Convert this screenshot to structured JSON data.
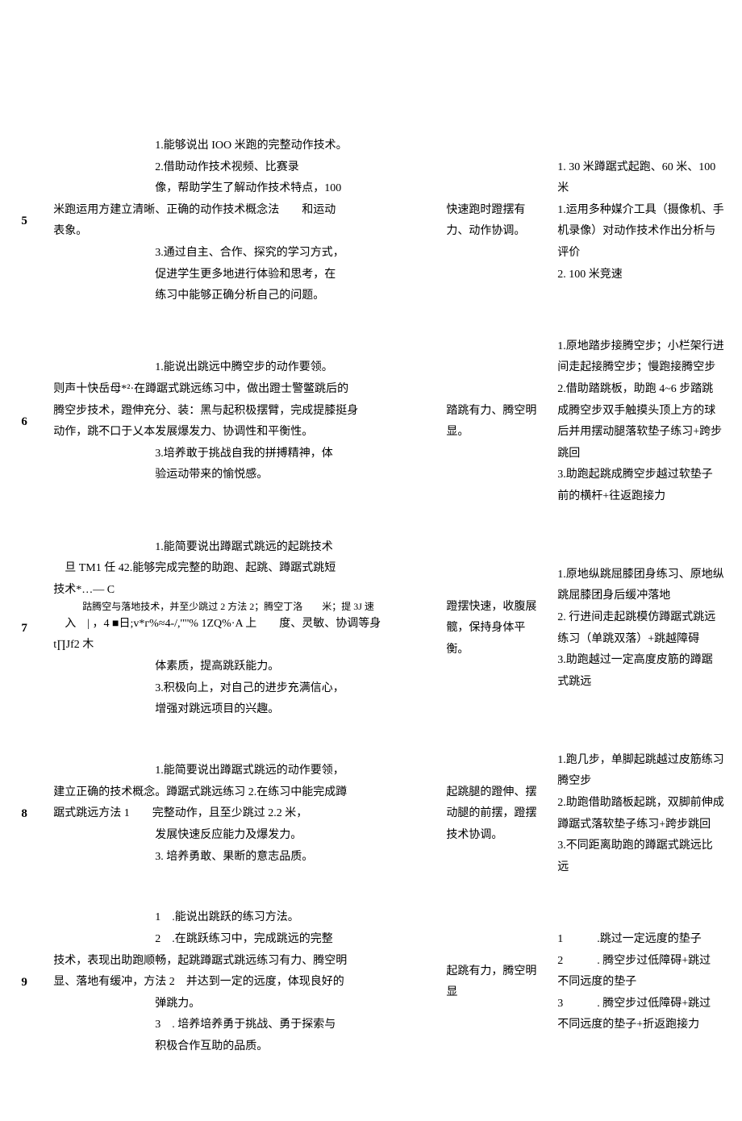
{
  "rows": [
    {
      "num": "5",
      "col2_lines": [
        "　　　　　　　　　1.能够说出 IOO 米跑的完整动作技术。",
        "　　　　　　　　　2.借助动作技术视频、比赛录",
        "　　　　　　　　　像，帮助学生了解动作技术特点，100",
        "米跑运用方建立清晰、正确的动作技术概念法　　和运动",
        "表象。",
        "　　　　　　　　　3.通过自主、合作、探究的学习方式，",
        "　　　　　　　　　促进学生更多地进行体验和思考，在",
        "　　　　　　　　　练习中能够正确分析自己的问题。"
      ],
      "col3_lines": [
        "快速跑时蹬摆有",
        "力、动作协调。"
      ],
      "col4_lines": [
        "1. 30 米蹲踞式起跑、60 米、100",
        "米",
        "1.运用多种媒介工具（摄像机、手",
        "机录像）对动作技术作出分析与",
        "评价",
        "2. 100 米竞速"
      ]
    },
    {
      "num": "6",
      "col2_lines": [
        "　　　　　　　　　1.能说出跳远中腾空步的动作要领。",
        "则声十快岳母*²·在蹲踞式跳远练习中，做出蹬士警鳖跳后的",
        "腾空步技术，蹬伸充分、装：黑与起积极摆臂，完成提膝挺身",
        "动作，跳不口于乂本发展爆发力、协调性和平衡性。",
        "　　　　　　　　　3.培养敢于挑战自我的拼搏精神，体",
        "　　　　　　　　　验运动带来的愉悦感。"
      ],
      "col3_lines": [
        "踏跳有力、腾空明",
        "显。"
      ],
      "col4_lines": [
        "1.原地踏步接腾空步；小栏架行进",
        "间走起接腾空步；慢跑接腾空步",
        "2.借助踏跳板，助跑 4~6 步踏跳",
        "成腾空步双手触摸头顶上方的球",
        "后并用摆动腿落软垫子练习+跨步",
        "跳回",
        "3.助跑起跳成腾空步越过软垫子",
        "前的横杆+往返跑接力"
      ]
    },
    {
      "num": "7",
      "col2_lines": [
        "　　　　　　　　　1.能简要说出蹲踞式跳远的起跳技术",
        "　旦 TM1 任 42.能够完成完整的助跑、起跳、蹲踞式跳短",
        "技术*…— C",
        "　入　| ，4 ■日;v*г%≈4-/,'\"'% 1ZQ%·A 上　　度、灵敏、协调等身",
        "t∏Jf2 木",
        "　　　　　　　　　体素质，提高跳跃能力。",
        "　　　　　　　　　3.积极向上，对自己的进步充满信心，",
        "　　　　　　　　　增强对跳远项目的兴趣。"
      ],
      "col2_garble": "　　　跍腾空与落地技术，并至少跳过 2 方法 2；腾空丁洛　　米；提 3J 速",
      "col3_lines": [
        "蹬摆快速，收腹展",
        "髋，保持身体平",
        "衡。"
      ],
      "col4_lines": [
        "1.原地纵跳屈膝团身练习、原地纵",
        "跳屈膝团身后缓冲落地",
        "2. 行进间走起跳模仿蹲踞式跳远",
        "练习（单跳双落）+跳越障碍",
        "3.助跑越过一定高度皮筋的蹲踞",
        "式跳远"
      ]
    },
    {
      "num": "8",
      "col2_lines": [
        "　　　　　　　　　1.能简要说出蹲踞式跳远的动作要领，",
        "建立正确的技术概念。蹲踞式跳远练习 2.在练习中能完成蹲",
        "踞式跳远方法 1　　完整动作，且至少跳过 2.2 米，",
        "　　　　　　　　　发展快速反应能力及爆发力。",
        "　　　　　　　　　3. 培养勇敢、果断的意志品质。"
      ],
      "col3_lines": [
        "起跳腿的蹬伸、摆",
        "动腿的前摆，蹬摆",
        "技术协调。"
      ],
      "col4_lines": [
        "1.跑几步，单脚起跳越过皮筋练习",
        "腾空步",
        "2.助跑借助踏板起跳，双脚前伸成",
        "蹲踞式落软垫子练习+跨步跳回",
        "3.不同距离助跑的蹲踞式跳远比",
        "远"
      ]
    },
    {
      "num": "9",
      "col2_lines": [
        "　　　　　　　　　1　.能说出跳跃的练习方法。",
        "　　　　　　　　　2　.在跳跃练习中，完成跳远的完整",
        "技术，表现出助跑顺畅，起跳蹲踞式跳远练习有力、腾空明",
        "显、落地有缓冲，方法 2　并达到一定的远度，体现良好的",
        "　　　　　　　　　弹跳力。",
        "　　　　　　　　　3　. 培养培养勇于挑战、勇于探索与",
        "　　　　　　　　　积极合作互助的品质。"
      ],
      "col3_lines": [
        "起跳有力，腾空明显"
      ],
      "col4_lines": [
        "1　　　.跳过一定远度的垫子",
        "2　　　. 腾空步过低障碍+跳过",
        "不同远度的垫子",
        "3　　　. 腾空步过低障碍+跳过",
        "不同远度的垫子+折返跑接力"
      ]
    }
  ]
}
